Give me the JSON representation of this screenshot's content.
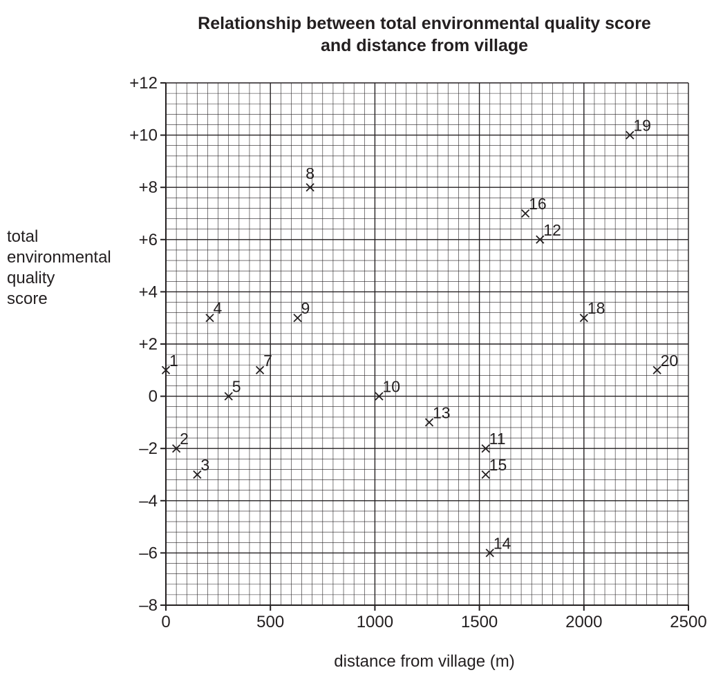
{
  "chart_data": {
    "type": "scatter",
    "title": "Relationship between total environmental quality score and distance from village",
    "title_lines": [
      "Relationship between total environmental quality score",
      "and distance from village"
    ],
    "xlabel": "distance from village (m)",
    "ylabel": "total environmental quality score",
    "ylabel_lines": [
      "total",
      "environmental",
      "quality",
      "score"
    ],
    "xlim": [
      0,
      2500
    ],
    "ylim": [
      -8,
      12
    ],
    "x_ticks": [
      0,
      500,
      1000,
      1500,
      2000,
      2500
    ],
    "x_tick_labels": [
      "0",
      "500",
      "1000",
      "1500",
      "2000",
      "2500"
    ],
    "y_ticks": [
      -8,
      -6,
      -4,
      -2,
      0,
      2,
      4,
      6,
      8,
      10,
      12
    ],
    "y_tick_labels": [
      "–8",
      "–6",
      "–4",
      "–2",
      "0",
      "+2",
      "+4",
      "+6",
      "+8",
      "+10",
      "+12"
    ],
    "grid": true,
    "grid_minor_x_step": 50,
    "grid_minor_y_step": 0.4,
    "marker": "×",
    "points": [
      {
        "label": "1",
        "x": 0,
        "y": 1
      },
      {
        "label": "2",
        "x": 50,
        "y": -2
      },
      {
        "label": "3",
        "x": 150,
        "y": -3
      },
      {
        "label": "4",
        "x": 210,
        "y": 3
      },
      {
        "label": "5",
        "x": 300,
        "y": 0
      },
      {
        "label": "7",
        "x": 450,
        "y": 1
      },
      {
        "label": "8",
        "x": 690,
        "y": 8
      },
      {
        "label": "9",
        "x": 630,
        "y": 3
      },
      {
        "label": "10",
        "x": 1020,
        "y": 0
      },
      {
        "label": "11",
        "x": 1530,
        "y": -2
      },
      {
        "label": "12",
        "x": 1790,
        "y": 6
      },
      {
        "label": "13",
        "x": 1260,
        "y": -1
      },
      {
        "label": "14",
        "x": 1550,
        "y": -6
      },
      {
        "label": "15",
        "x": 1530,
        "y": -3
      },
      {
        "label": "16",
        "x": 1720,
        "y": 7
      },
      {
        "label": "18",
        "x": 2000,
        "y": 3
      },
      {
        "label": "19",
        "x": 2220,
        "y": 10
      },
      {
        "label": "20",
        "x": 2350,
        "y": 1
      }
    ]
  }
}
